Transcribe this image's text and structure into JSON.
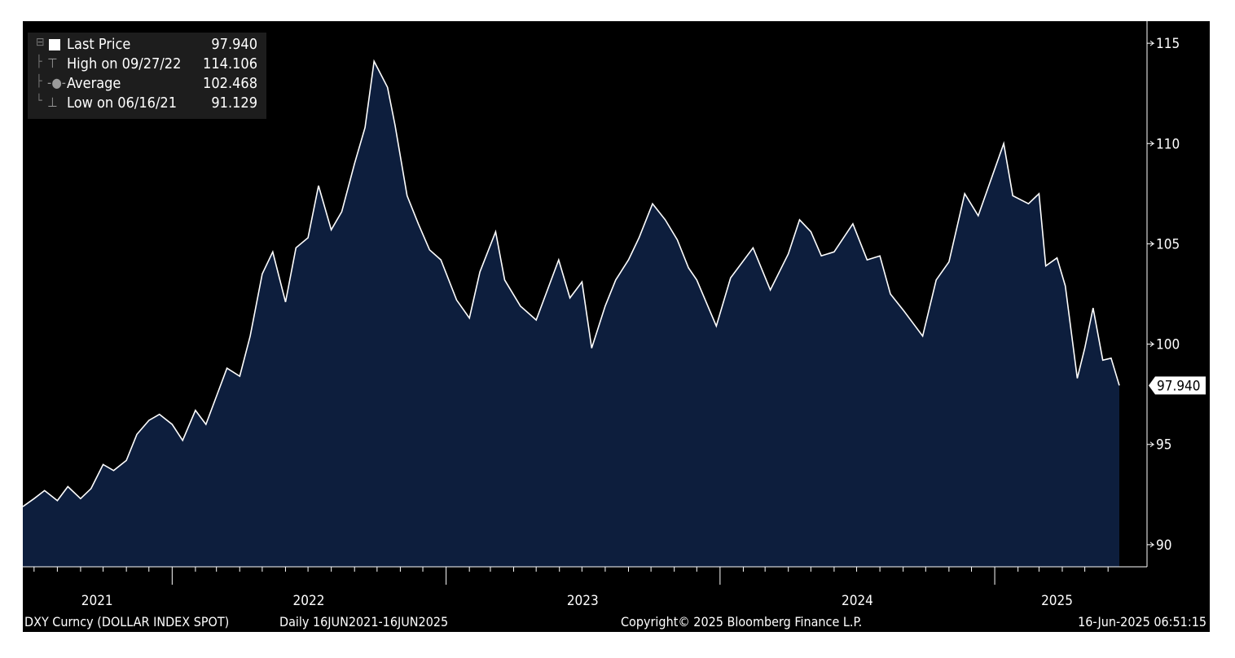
{
  "legend": {
    "last_price": {
      "label": "Last Price",
      "value": "97.940"
    },
    "high": {
      "label": "High on 09/27/22",
      "value": "114.106"
    },
    "average": {
      "label": "Average",
      "value": "102.468"
    },
    "low": {
      "label": "Low on 06/16/21",
      "value": "91.129"
    }
  },
  "footer": {
    "security": "DXY Curncy (DOLLAR INDEX SPOT)",
    "period": "Daily 16JUN2021-16JUN2025",
    "copyright": "Copyright© 2025 Bloomberg Finance L.P.",
    "timestamp": "16-Jun-2025 06:51:15"
  },
  "colors": {
    "background": "#000000",
    "area_fill": "#0d1e3d",
    "line": "#ffffff",
    "legend_bg": "#1d1d1d"
  },
  "chart_data": {
    "type": "area",
    "series": [
      {
        "name": "Last Price",
        "points": [
          [
            "2021-06-16",
            91.9
          ],
          [
            "2021-07-01",
            92.3
          ],
          [
            "2021-07-15",
            92.7
          ],
          [
            "2021-08-01",
            92.2
          ],
          [
            "2021-08-15",
            92.9
          ],
          [
            "2021-09-01",
            92.3
          ],
          [
            "2021-09-15",
            92.8
          ],
          [
            "2021-10-01",
            94.0
          ],
          [
            "2021-10-15",
            93.7
          ],
          [
            "2021-11-01",
            94.2
          ],
          [
            "2021-11-15",
            95.5
          ],
          [
            "2021-12-01",
            96.2
          ],
          [
            "2021-12-15",
            96.5
          ],
          [
            "2022-01-01",
            96.0
          ],
          [
            "2022-01-15",
            95.2
          ],
          [
            "2022-02-01",
            96.7
          ],
          [
            "2022-02-15",
            96.0
          ],
          [
            "2022-03-01",
            97.4
          ],
          [
            "2022-03-15",
            98.8
          ],
          [
            "2022-04-01",
            98.4
          ],
          [
            "2022-04-15",
            100.4
          ],
          [
            "2022-05-01",
            103.5
          ],
          [
            "2022-05-15",
            104.6
          ],
          [
            "2022-06-01",
            102.1
          ],
          [
            "2022-06-15",
            104.8
          ],
          [
            "2022-07-01",
            105.3
          ],
          [
            "2022-07-15",
            107.9
          ],
          [
            "2022-08-01",
            105.7
          ],
          [
            "2022-08-15",
            106.6
          ],
          [
            "2022-09-01",
            109.0
          ],
          [
            "2022-09-15",
            110.8
          ],
          [
            "2022-09-27",
            114.1
          ],
          [
            "2022-10-15",
            112.8
          ],
          [
            "2022-10-25",
            110.9
          ],
          [
            "2022-11-10",
            107.4
          ],
          [
            "2022-11-25",
            106.0
          ],
          [
            "2022-12-10",
            104.7
          ],
          [
            "2022-12-25",
            104.2
          ],
          [
            "2023-01-15",
            102.2
          ],
          [
            "2023-02-01",
            101.3
          ],
          [
            "2023-02-15",
            103.6
          ],
          [
            "2023-03-08",
            105.6
          ],
          [
            "2023-03-20",
            103.2
          ],
          [
            "2023-04-10",
            101.9
          ],
          [
            "2023-05-01",
            101.2
          ],
          [
            "2023-05-31",
            104.2
          ],
          [
            "2023-06-15",
            102.3
          ],
          [
            "2023-07-01",
            103.1
          ],
          [
            "2023-07-14",
            99.8
          ],
          [
            "2023-08-01",
            101.9
          ],
          [
            "2023-08-15",
            103.2
          ],
          [
            "2023-09-01",
            104.2
          ],
          [
            "2023-09-15",
            105.3
          ],
          [
            "2023-10-03",
            107.0
          ],
          [
            "2023-10-20",
            106.2
          ],
          [
            "2023-11-05",
            105.2
          ],
          [
            "2023-11-20",
            103.8
          ],
          [
            "2023-12-01",
            103.2
          ],
          [
            "2023-12-27",
            100.9
          ],
          [
            "2024-01-15",
            103.3
          ],
          [
            "2024-02-14",
            104.8
          ],
          [
            "2024-03-08",
            102.7
          ],
          [
            "2024-04-01",
            104.5
          ],
          [
            "2024-04-16",
            106.2
          ],
          [
            "2024-05-01",
            105.6
          ],
          [
            "2024-05-15",
            104.4
          ],
          [
            "2024-06-01",
            104.6
          ],
          [
            "2024-06-26",
            106.0
          ],
          [
            "2024-07-15",
            104.2
          ],
          [
            "2024-08-01",
            104.4
          ],
          [
            "2024-08-15",
            102.5
          ],
          [
            "2024-09-01",
            101.7
          ],
          [
            "2024-09-27",
            100.4
          ],
          [
            "2024-10-15",
            103.2
          ],
          [
            "2024-11-01",
            104.1
          ],
          [
            "2024-11-22",
            107.5
          ],
          [
            "2024-12-10",
            106.4
          ],
          [
            "2025-01-13",
            110.0
          ],
          [
            "2025-01-25",
            107.4
          ],
          [
            "2025-02-15",
            107.0
          ],
          [
            "2025-03-01",
            107.5
          ],
          [
            "2025-03-10",
            103.9
          ],
          [
            "2025-03-25",
            104.3
          ],
          [
            "2025-04-05",
            102.9
          ],
          [
            "2025-04-21",
            98.3
          ],
          [
            "2025-05-01",
            99.8
          ],
          [
            "2025-05-12",
            101.8
          ],
          [
            "2025-05-25",
            99.2
          ],
          [
            "2025-06-05",
            99.3
          ],
          [
            "2025-06-16",
            97.94
          ]
        ]
      }
    ],
    "x_ticks": [
      "2021",
      "2022",
      "2023",
      "2024",
      "2025"
    ],
    "y_ticks": [
      90,
      95,
      100,
      105,
      110,
      115
    ],
    "ylim": [
      88.9,
      116.1
    ],
    "xlim": [
      "2021-06-16",
      "2025-06-16"
    ],
    "y_axis_position": "right",
    "last_value_label": "97.940",
    "grid": false,
    "legend_position": "top-left"
  }
}
